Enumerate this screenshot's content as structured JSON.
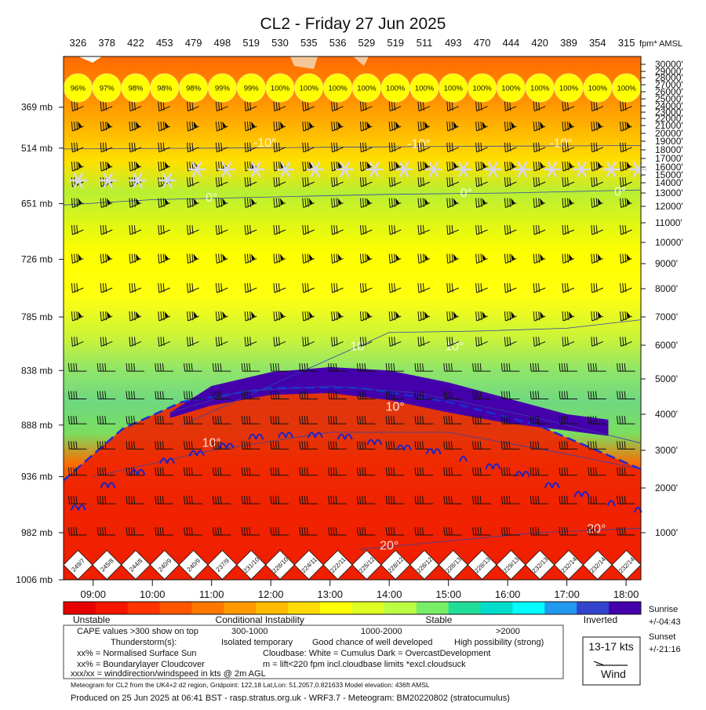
{
  "title": "CL2 - Friday 27 Jun 2025",
  "chart_data": {
    "type": "heatmap",
    "title": "CL2 - Friday 27 Jun 2025",
    "top_axis_unit": "fpm* AMSL",
    "top_values": [
      "326",
      "378",
      "422",
      "453",
      "479",
      "498",
      "519",
      "530",
      "535",
      "536",
      "529",
      "519",
      "511",
      "493",
      "470",
      "444",
      "420",
      "389",
      "354",
      "315"
    ],
    "sun_values": [
      "96%",
      "97%",
      "98%",
      "98%",
      "98%",
      "99%",
      "99%",
      "100%",
      "100%",
      "100%",
      "100%",
      "100%",
      "100%",
      "100%",
      "100%",
      "100%",
      "100%",
      "100%",
      "100%",
      "100%"
    ],
    "wind_labels": [
      "249/7",
      "245/8",
      "244/8",
      "240/9",
      "240/9",
      "237/9",
      "231/10",
      "228/10",
      "224/11",
      "222/11",
      "225/12",
      "228/12",
      "228/12",
      "228/13",
      "228/13",
      "229/13",
      "232/13",
      "232/14",
      "232/14",
      "232/14"
    ],
    "x_ticks": [
      "09:00",
      "10:00",
      "11:00",
      "12:00",
      "13:00",
      "14:00",
      "15:00",
      "16:00",
      "17:00",
      "18:00"
    ],
    "x_tick_hours": [
      9,
      10,
      11,
      12,
      13,
      14,
      15,
      16,
      17,
      18
    ],
    "x_range": [
      8.5,
      18.25
    ],
    "pressure_labels": [
      {
        "label": "369 mb",
        "alt": 23800
      },
      {
        "label": "514 mb",
        "alt": 18200
      },
      {
        "label": "651 mb",
        "alt": 12200
      },
      {
        "label": "726 mb",
        "alt": 9200
      },
      {
        "label": "785 mb",
        "alt": 7000
      },
      {
        "label": "838 mb",
        "alt": 5250
      },
      {
        "label": "888 mb",
        "alt": 3700
      },
      {
        "label": "936 mb",
        "alt": 2300
      },
      {
        "label": "982 mb",
        "alt": 1000
      },
      {
        "label": "1006 mb",
        "alt": 436
      }
    ],
    "altitude_labels": [
      {
        "label": "30000'",
        "alt": 30000
      },
      {
        "label": "29000'",
        "alt": 29000
      },
      {
        "label": "28000'",
        "alt": 28000
      },
      {
        "label": "27000'",
        "alt": 27000
      },
      {
        "label": "26000'",
        "alt": 26000
      },
      {
        "label": "25000'",
        "alt": 25000
      },
      {
        "label": "24000'",
        "alt": 24000
      },
      {
        "label": "23000'",
        "alt": 23000
      },
      {
        "label": "22000'",
        "alt": 22000
      },
      {
        "label": "21000'",
        "alt": 21000
      },
      {
        "label": "20000'",
        "alt": 20000
      },
      {
        "label": "19000'",
        "alt": 19000
      },
      {
        "label": "18000'",
        "alt": 18000
      },
      {
        "label": "17000'",
        "alt": 17000
      },
      {
        "label": "16000'",
        "alt": 16000
      },
      {
        "label": "15000'",
        "alt": 15000
      },
      {
        "label": "14000'",
        "alt": 14000
      },
      {
        "label": "13000'",
        "alt": 13000
      },
      {
        "label": "12000'",
        "alt": 12000
      },
      {
        "label": "11000'",
        "alt": 11000
      },
      {
        "label": "10000'",
        "alt": 10000
      },
      {
        "label": "9000'",
        "alt": 9000
      },
      {
        "label": "8000'",
        "alt": 8000
      },
      {
        "label": "7000'",
        "alt": 7000
      },
      {
        "label": "6000'",
        "alt": 6000
      },
      {
        "label": "5000'",
        "alt": 5000
      },
      {
        "label": "4000'",
        "alt": 4000
      },
      {
        "label": "3000'",
        "alt": 3000
      },
      {
        "label": "2000'",
        "alt": 2000
      },
      {
        "label": "1000'",
        "alt": 1000
      }
    ],
    "isotherms": [
      {
        "label": "-10°",
        "points": [
          [
            8.5,
            18100
          ],
          [
            11,
            18200
          ],
          [
            13,
            18300
          ],
          [
            15,
            18400
          ],
          [
            18.25,
            18500
          ]
        ],
        "label_at": [
          [
            11.9,
            18350
          ],
          [
            14.5,
            18250
          ],
          [
            16.9,
            18300
          ]
        ]
      },
      {
        "label": "0°",
        "points": [
          [
            8.5,
            12100
          ],
          [
            10,
            12500
          ],
          [
            12,
            12700
          ],
          [
            14,
            12900
          ],
          [
            16,
            13000
          ],
          [
            18.25,
            13300
          ]
        ],
        "label_at": [
          [
            11.0,
            12350
          ],
          [
            15.3,
            12700
          ],
          [
            17.9,
            12800
          ]
        ]
      },
      {
        "label": "10°",
        "points": [
          [
            10.5,
            3700
          ],
          [
            12.5,
            5200
          ],
          [
            14,
            6450
          ],
          [
            15.5,
            6500
          ],
          [
            17,
            6600
          ],
          [
            18.25,
            6900
          ]
        ],
        "label_at": [
          [
            13.5,
            5850
          ],
          [
            15.1,
            5850
          ]
        ]
      },
      {
        "label": "10°",
        "points": [
          [
            10.3,
            4050
          ],
          [
            11.5,
            4650
          ],
          [
            13,
            4800
          ],
          [
            14.5,
            4600
          ],
          [
            16.5,
            3900
          ],
          [
            18.25,
            3200
          ]
        ],
        "label_at": [
          [
            14.1,
            4100
          ]
        ]
      },
      {
        "label": "10°",
        "points": [
          [
            9.0,
            2300
          ],
          [
            11,
            3000
          ],
          [
            13,
            3500
          ],
          [
            15,
            3500
          ],
          [
            17,
            2900
          ],
          [
            18.25,
            2500
          ]
        ],
        "label_at": [
          [
            11.0,
            3100
          ]
        ]
      },
      {
        "label": "20°",
        "points": [
          [
            13.5,
            800
          ],
          [
            15,
            900
          ],
          [
            16.5,
            1000
          ],
          [
            18.25,
            1100
          ]
        ],
        "label_at": [
          [
            14.0,
            800
          ],
          [
            17.5,
            1000
          ]
        ]
      }
    ],
    "boundary_layer_top": [
      [
        8.5,
        2200
      ],
      [
        9.5,
        3600
      ],
      [
        10.5,
        4350
      ],
      [
        12,
        4750
      ],
      [
        13.5,
        4750
      ],
      [
        15,
        4350
      ],
      [
        16.5,
        3700
      ],
      [
        17.5,
        3000
      ],
      [
        18.25,
        2500
      ]
    ],
    "cloud_layer": {
      "top": [
        [
          10.3,
          4050
        ],
        [
          11,
          4800
        ],
        [
          12,
          5200
        ],
        [
          13,
          5350
        ],
        [
          14,
          5250
        ],
        [
          15,
          4900
        ],
        [
          16,
          4450
        ],
        [
          17,
          4000
        ],
        [
          17.7,
          3850
        ]
      ],
      "base": [
        [
          17.7,
          3400
        ],
        [
          17,
          3550
        ],
        [
          16,
          3750
        ],
        [
          15,
          4050
        ],
        [
          14,
          4400
        ],
        [
          13,
          4600
        ],
        [
          12,
          4550
        ],
        [
          11,
          4250
        ],
        [
          10.3,
          3900
        ]
      ]
    },
    "cumulus_marks": [
      {
        "t": 8.75,
        "alt": 1500,
        "n": 2
      },
      {
        "t": 9.25,
        "alt": 2000,
        "n": 2
      },
      {
        "t": 9.75,
        "alt": 2350,
        "n": 2
      },
      {
        "t": 10.25,
        "alt": 2650,
        "n": 2
      },
      {
        "t": 10.75,
        "alt": 2850,
        "n": 2
      },
      {
        "t": 11.25,
        "alt": 3050,
        "n": 2
      },
      {
        "t": 11.75,
        "alt": 3300,
        "n": 2
      },
      {
        "t": 12.25,
        "alt": 3350,
        "n": 2
      },
      {
        "t": 12.75,
        "alt": 3350,
        "n": 2
      },
      {
        "t": 13.25,
        "alt": 3300,
        "n": 2
      },
      {
        "t": 13.75,
        "alt": 3150,
        "n": 2
      },
      {
        "t": 14.25,
        "alt": 3000,
        "n": 2
      },
      {
        "t": 14.75,
        "alt": 2900,
        "n": 2
      },
      {
        "t": 15.25,
        "alt": 2700,
        "n": 1
      },
      {
        "t": 15.75,
        "alt": 2500,
        "n": 2
      },
      {
        "t": 16.25,
        "alt": 2300,
        "n": 2
      },
      {
        "t": 16.75,
        "alt": 2000,
        "n": 2
      },
      {
        "t": 17.25,
        "alt": 1800,
        "n": 2
      },
      {
        "t": 17.75,
        "alt": 1600,
        "n": 1
      },
      {
        "t": 18.2,
        "alt": 1450,
        "n": 1
      }
    ],
    "snow_marks": [
      {
        "t": 8.75,
        "alt": 14300
      },
      {
        "t": 9.25,
        "alt": 14300
      },
      {
        "t": 9.75,
        "alt": 14300
      },
      {
        "t": 10.25,
        "alt": 14300
      },
      {
        "t": 10.75,
        "alt": 15700
      },
      {
        "t": 11.25,
        "alt": 15700
      },
      {
        "t": 11.75,
        "alt": 15700
      },
      {
        "t": 12.25,
        "alt": 15700
      },
      {
        "t": 12.75,
        "alt": 15700
      },
      {
        "t": 13.25,
        "alt": 15700
      },
      {
        "t": 13.75,
        "alt": 15700
      },
      {
        "t": 14.25,
        "alt": 15700
      },
      {
        "t": 14.75,
        "alt": 15700
      },
      {
        "t": 15.25,
        "alt": 15700
      },
      {
        "t": 15.75,
        "alt": 15700
      },
      {
        "t": 16.25,
        "alt": 15700
      },
      {
        "t": 16.75,
        "alt": 15700
      },
      {
        "t": 17.25,
        "alt": 15700
      },
      {
        "t": 17.75,
        "alt": 15700
      },
      {
        "t": 18.2,
        "alt": 15700
      }
    ],
    "colorbar": {
      "colors": [
        "#e60000",
        "#f51500",
        "#ff3300",
        "#ff5500",
        "#ff7700",
        "#ff9900",
        "#ffbb00",
        "#ffdd00",
        "#ffff00",
        "#ddff22",
        "#bbff44",
        "#77ee66",
        "#22dd99",
        "#00ddcc",
        "#00ffff",
        "#2299ee",
        "#3344cc",
        "#4400aa"
      ],
      "labels": [
        {
          "text": "Unstable",
          "at": 0.0,
          "align": "start"
        },
        {
          "text": "Conditional Instability",
          "at": 0.34,
          "align": "middle"
        },
        {
          "text": "Stable",
          "at": 0.65,
          "align": "middle"
        },
        {
          "text": "Inverted",
          "at": 0.93,
          "align": "middle"
        }
      ]
    }
  },
  "sunrise": {
    "label": "Sunrise",
    "value": "+/-04:43"
  },
  "sunset": {
    "label": "Sunset",
    "value": "+/-21:16"
  },
  "legend": {
    "line1_left": "CAPE values >300 show on top",
    "line1_mid": "300-1000",
    "line1_mid2": "1000-2000",
    "line1_right": ">2000",
    "line2_left": "Thunderstorm(s):",
    "line2_mid": "Isolated temporary",
    "line2_mid2": "Good chance of well developed",
    "line2_right": "High possibility (strong)",
    "line3_left": "xx% = Normalised Surface Sun",
    "line3_right": "Cloudbase: White = Cumulus    Dark = OvercastDevelopment",
    "line4_left": "xx% = Boundarylayer Cloudcover",
    "line4_right": "m = lift<220 fpm incl.cloudbase limits *excl.cloudsuck",
    "line5_left": "xxx/xx = winddirection/windspeed in kts @ 2m AGL"
  },
  "wind_box": {
    "speed": "13-17 kts",
    "label": "Wind"
  },
  "meta_line": "Meteogram for CL2 from the UK4+2 d2 region, Gridpoint: 122,18 Lat,Lon: 51.2057,0.821633 Model elevation: 436ft AMSL",
  "footer": "Produced on 25 Jun 2025 at 06:41 BST - rasp.stratus.org.uk - WRF3.7 - Meteogram: BM20220802 (stratocumulus)"
}
